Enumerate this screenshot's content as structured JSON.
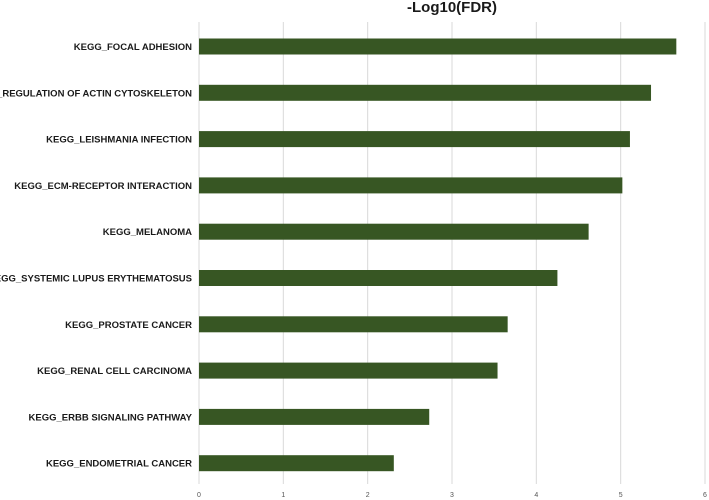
{
  "chart_data": {
    "type": "bar",
    "orientation": "horizontal",
    "title": "-Log10(FDR)",
    "xlabel": "",
    "ylabel": "",
    "categories": [
      "KEGG_FOCAL ADHESION",
      "KEGG_REGULATION OF ACTIN CYTOSKELETON",
      "KEGG_LEISHMANIA INFECTION",
      "KEGG_ECM-RECEPTOR INTERACTION",
      "KEGG_MELANOMA",
      "KEGG_SYSTEMIC LUPUS ERYTHEMATOSUS",
      "KEGG_PROSTATE CANCER",
      "KEGG_RENAL CELL CARCINOMA",
      "KEGG_ERBB SIGNALING PATHWAY",
      "KEGG_ENDOMETRIAL CANCER"
    ],
    "values": [
      5.66,
      5.36,
      5.11,
      5.02,
      4.62,
      4.25,
      3.66,
      3.54,
      2.73,
      2.31
    ],
    "xlim": [
      0,
      6
    ],
    "xticks": [
      "0",
      "1",
      "2",
      "3",
      "4",
      "5",
      "6"
    ],
    "grid": true,
    "legend": "none",
    "bar_color": "#375623",
    "grid_color": "#d9d9d9"
  }
}
